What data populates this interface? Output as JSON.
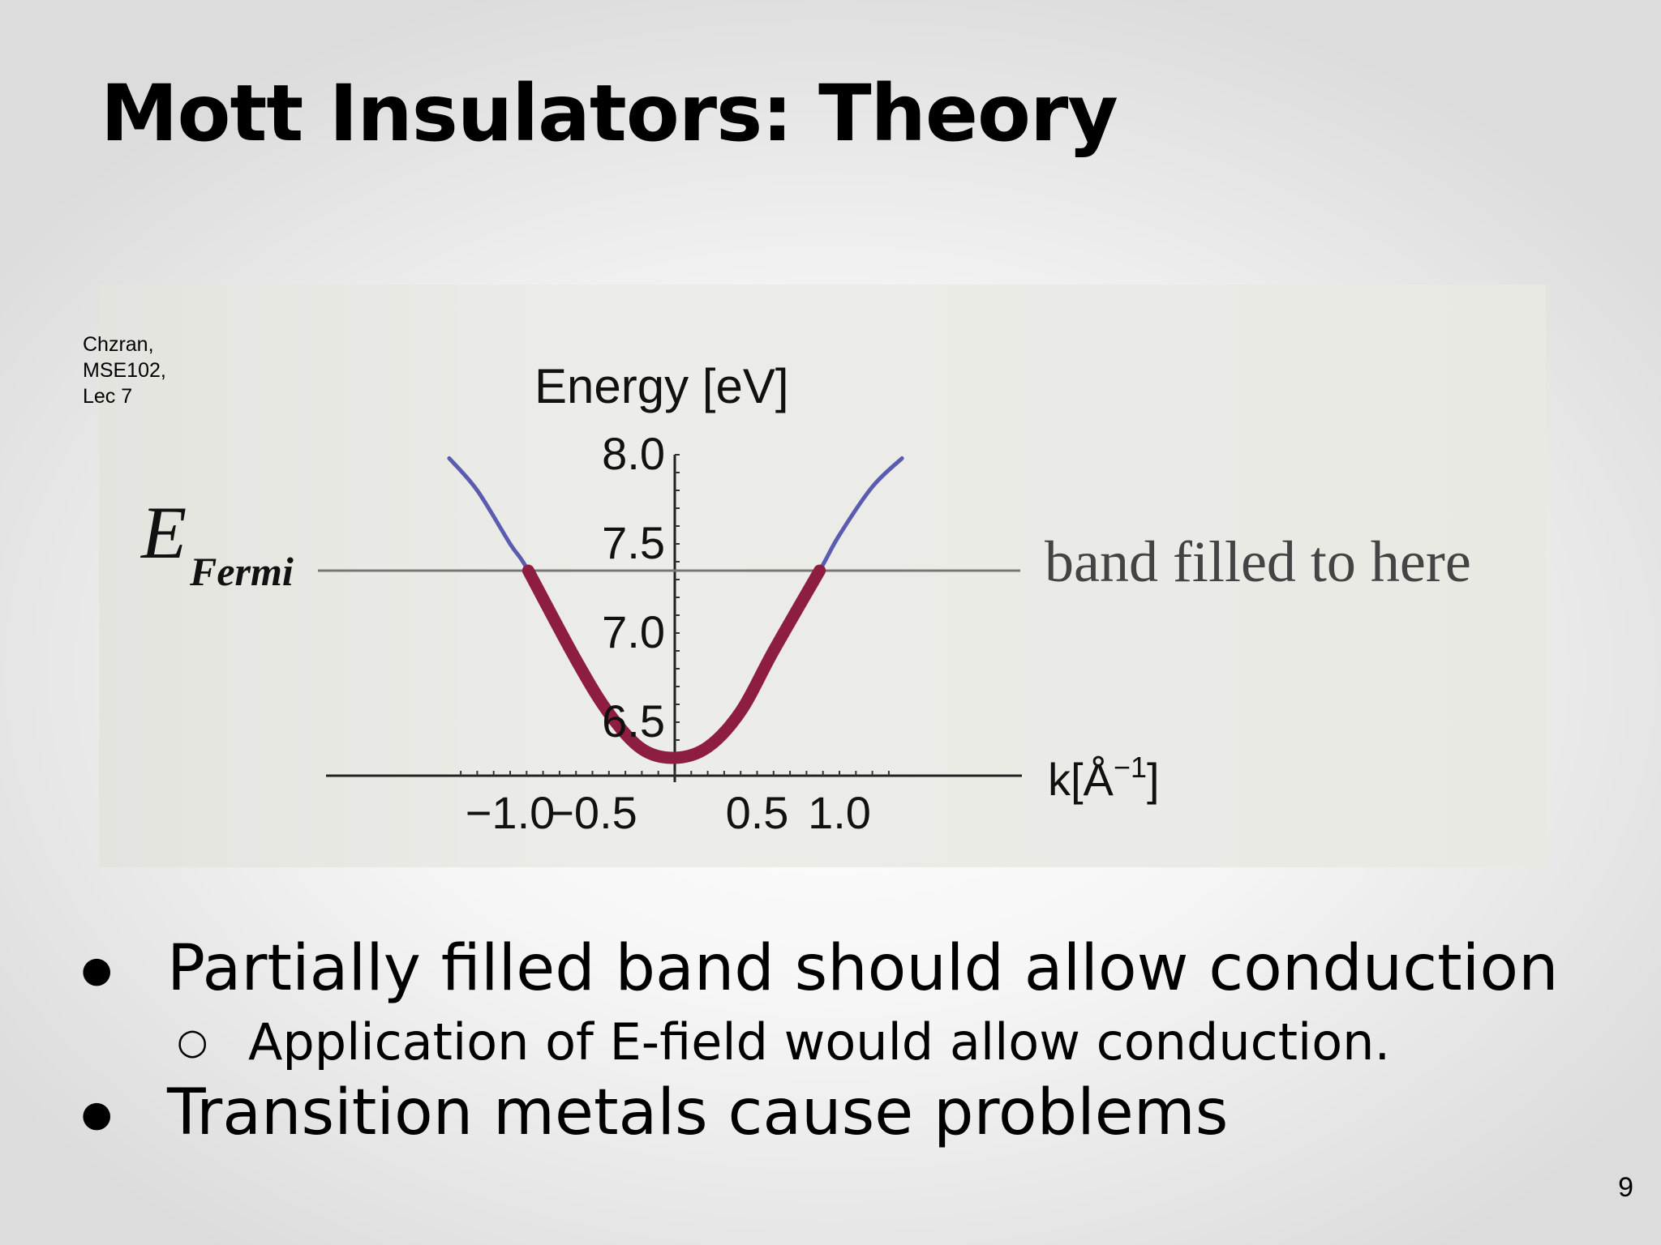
{
  "slide": {
    "title": "Mott Insulators: Theory",
    "credit": [
      "Chzran,",
      "MSE102,",
      "Lec 7"
    ],
    "page_number": "9"
  },
  "figure": {
    "y_axis_label": "Energy [eV]",
    "x_axis_label": "k[Å",
    "x_axis_label_exponent": "−1",
    "x_axis_label_close": "]",
    "fermi_label_main": "E",
    "fermi_label_sub": "Fermi",
    "fermi_annotation": "band filled to here",
    "y_ticks": [
      "8.0",
      "7.5",
      "7.0",
      "6.5"
    ],
    "x_ticks": [
      "−1.0",
      "−0.5",
      "0.5",
      "1.0"
    ],
    "colors": {
      "band": "#5b5bb0",
      "filled": "#8e1e3f",
      "fermi_line": "#777777"
    }
  },
  "chart_data": {
    "type": "line",
    "xlabel": "k[Å−1]",
    "ylabel": "Energy [eV]",
    "ylim": [
      6.2,
      8.0
    ],
    "xlim": [
      -1.4,
      1.4
    ],
    "y_ticks": [
      6.5,
      7.0,
      7.5,
      8.0
    ],
    "x_ticks": [
      -1.0,
      -0.5,
      0.5,
      1.0
    ],
    "fermi_energy": 7.35,
    "series": [
      {
        "x": [
          -1.37,
          -1.2,
          -1.0,
          -0.89,
          -0.6,
          -0.4,
          -0.2,
          0.0,
          0.2,
          0.4,
          0.6,
          0.88,
          1.0,
          1.2,
          1.38
        ],
        "y": [
          7.98,
          7.8,
          7.5,
          7.35,
          6.85,
          6.55,
          6.35,
          6.3,
          6.36,
          6.56,
          6.9,
          7.35,
          7.55,
          7.82,
          7.98
        ]
      }
    ],
    "filled_region": {
      "x_from": -0.89,
      "x_to": 0.88
    },
    "annotations": [
      "band filled to here"
    ]
  },
  "bullets": [
    {
      "level": 1,
      "marker": "●",
      "text": "Partially filled band should allow conduction"
    },
    {
      "level": 2,
      "marker": "○",
      "text": "Application of E-field would allow conduction."
    },
    {
      "level": 1,
      "marker": "●",
      "text": "Transition metals cause problems"
    }
  ]
}
